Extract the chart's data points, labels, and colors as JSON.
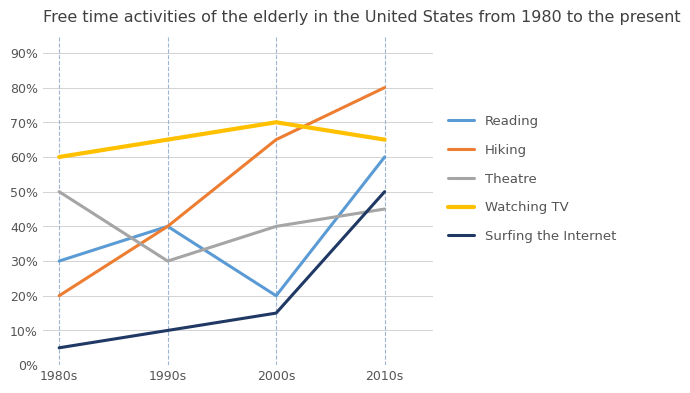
{
  "title": "Free time activities of the elderly in the United States from 1980 to the present",
  "x_labels": [
    "1980s",
    "1990s",
    "2000s",
    "2010s"
  ],
  "x_values": [
    0,
    1,
    2,
    3
  ],
  "series": [
    {
      "name": "Reading",
      "values": [
        30,
        40,
        20,
        60
      ],
      "color": "#5B9BD5",
      "linewidth": 2.2
    },
    {
      "name": "Hiking",
      "values": [
        20,
        40,
        65,
        80
      ],
      "color": "#ED7D31",
      "linewidth": 2.2
    },
    {
      "name": "Theatre",
      "values": [
        50,
        30,
        40,
        45
      ],
      "color": "#A5A5A5",
      "linewidth": 2.2
    },
    {
      "name": "Watching TV",
      "values": [
        60,
        65,
        70,
        65
      ],
      "color": "#FFC000",
      "linewidth": 3.0
    },
    {
      "name": "Surfing the Internet",
      "values": [
        5,
        10,
        15,
        50
      ],
      "color": "#1F3864",
      "linewidth": 2.2
    }
  ],
  "ylim": [
    0,
    95
  ],
  "yticks": [
    0,
    10,
    20,
    30,
    40,
    50,
    60,
    70,
    80,
    90
  ],
  "grid_color": "#D3D3D3",
  "vline_color": "#9EB6D4",
  "background_color": "#FFFFFF",
  "title_fontsize": 11.5,
  "legend_fontsize": 9.5,
  "tick_fontsize": 9,
  "title_color": "#404040",
  "tick_color": "#555555"
}
